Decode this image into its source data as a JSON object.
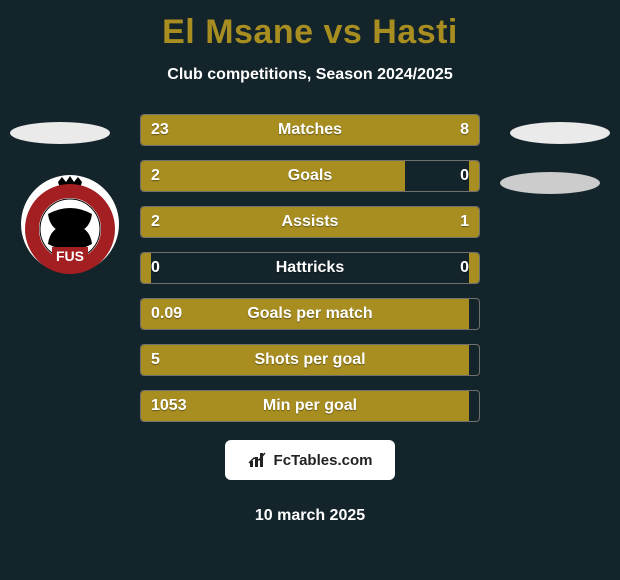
{
  "title": "El Msane vs Hasti",
  "subtitle": "Club competitions, Season 2024/2025",
  "date": "10 march 2025",
  "footer_label": "FcTables.com",
  "colors": {
    "background": "#14242b",
    "accent": "#a88e21",
    "bar_border": "#71706e",
    "text": "#ffffff",
    "badge_bg": "#eaeaea"
  },
  "stats": [
    {
      "label": "Matches",
      "left_val": "23",
      "right_val": "8",
      "left_pct": 72,
      "right_pct": 28
    },
    {
      "label": "Goals",
      "left_val": "2",
      "right_val": "0",
      "left_pct": 78,
      "right_pct": 3
    },
    {
      "label": "Assists",
      "left_val": "2",
      "right_val": "1",
      "left_pct": 63,
      "right_pct": 37
    },
    {
      "label": "Hattricks",
      "left_val": "0",
      "right_val": "0",
      "left_pct": 3,
      "right_pct": 3
    },
    {
      "label": "Goals per match",
      "left_val": "0.09",
      "right_val": "",
      "left_pct": 97,
      "right_pct": 0
    },
    {
      "label": "Shots per goal",
      "left_val": "5",
      "right_val": "",
      "left_pct": 97,
      "right_pct": 0
    },
    {
      "label": "Min per goal",
      "left_val": "1053",
      "right_val": "",
      "left_pct": 97,
      "right_pct": 0
    }
  ],
  "crest": {
    "ring_color": "#a31f21",
    "inner_bg": "#ffffff",
    "text_color": "#000000",
    "crown_color": "#000000",
    "label": "FUS"
  }
}
